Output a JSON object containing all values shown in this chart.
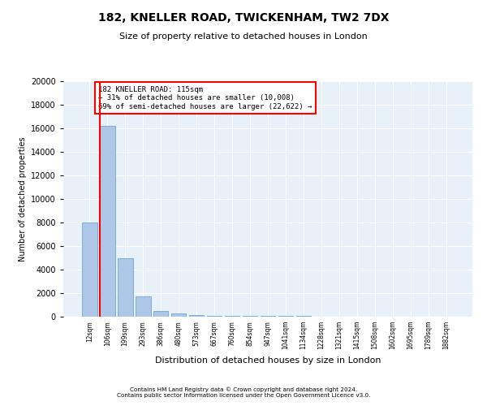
{
  "title_line1": "182, KNELLER ROAD, TWICKENHAM, TW2 7DX",
  "title_line2": "Size of property relative to detached houses in London",
  "xlabel": "Distribution of detached houses by size in London",
  "ylabel": "Number of detached properties",
  "categories": [
    "12sqm",
    "106sqm",
    "199sqm",
    "293sqm",
    "386sqm",
    "480sqm",
    "573sqm",
    "667sqm",
    "760sqm",
    "854sqm",
    "947sqm",
    "1041sqm",
    "1134sqm",
    "1228sqm",
    "1321sqm",
    "1415sqm",
    "1508sqm",
    "1602sqm",
    "1695sqm",
    "1789sqm",
    "1882sqm"
  ],
  "bar_values": [
    8000,
    16200,
    5000,
    1700,
    500,
    250,
    150,
    90,
    70,
    60,
    50,
    40,
    35,
    30,
    25,
    20,
    15,
    10,
    10,
    5,
    3
  ],
  "bar_color": "#aec6e8",
  "bar_edge_color": "#5a9ad4",
  "vline_x": 1.0,
  "vline_color": "red",
  "annotation_text": "182 KNELLER ROAD: 115sqm\n← 31% of detached houses are smaller (10,008)\n69% of semi-detached houses are larger (22,622) →",
  "annotation_box_color": "red",
  "annotation_fill": "white",
  "ylim": [
    0,
    20000
  ],
  "yticks": [
    0,
    2000,
    4000,
    6000,
    8000,
    10000,
    12000,
    14000,
    16000,
    18000,
    20000
  ],
  "bg_color": "#e8f0f8",
  "footer_line1": "Contains HM Land Registry data © Crown copyright and database right 2024.",
  "footer_line2": "Contains public sector information licensed under the Open Government Licence v3.0."
}
